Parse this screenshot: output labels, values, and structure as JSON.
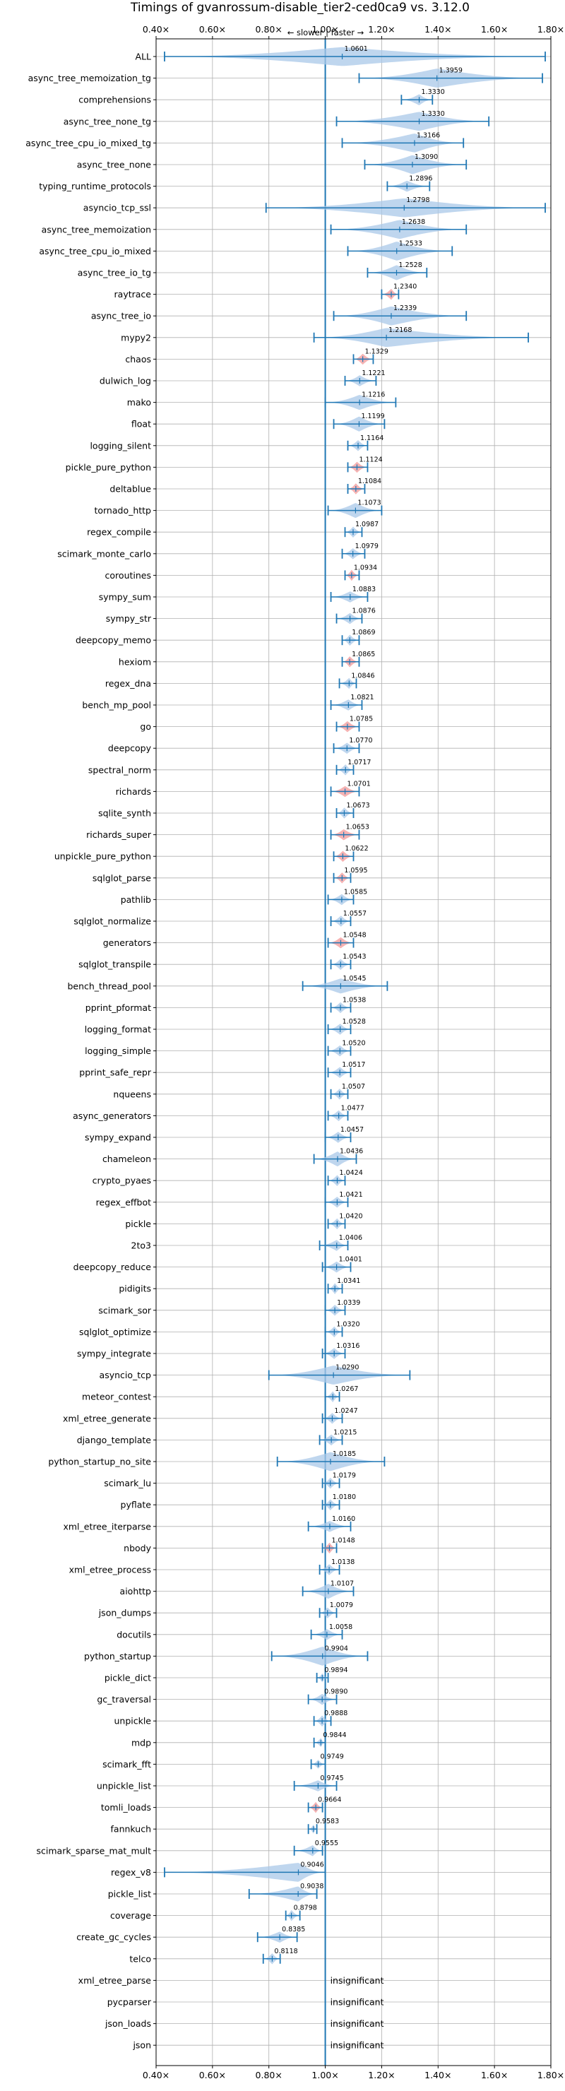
{
  "chart_data": {
    "type": "violin",
    "title": "Timings of gvanrossum-disable_tier2-ced0ca9 vs. 3.12.0",
    "direction_label": "← slower | faster →",
    "xlim": [
      0.4,
      1.8
    ],
    "xticks": [
      0.4,
      0.6,
      0.8,
      1.0,
      1.2,
      1.4,
      1.6,
      1.8
    ],
    "xtick_labels": [
      "0.40×",
      "0.60×",
      "0.80×",
      "1.00×",
      "1.20×",
      "1.40×",
      "1.60×",
      "1.80×"
    ],
    "grid": true,
    "reference_line": 1.0,
    "colors": {
      "violin": "#a9c8e8",
      "line": "#1f77b4",
      "highlight": "#f4a6a6",
      "grid": "#b0b0b0"
    },
    "insignificant_label": "insignificant",
    "benchmarks": [
      {
        "name": "ALL",
        "value": 1.0601,
        "label": "1.0601",
        "min": 0.43,
        "max": 1.78,
        "width": 0.95,
        "hl": false
      },
      {
        "name": "async_tree_memoization_tg",
        "value": 1.3959,
        "label": "1.3959",
        "min": 1.12,
        "max": 1.77,
        "width": 0.95,
        "hl": false
      },
      {
        "name": "comprehensions",
        "value": 1.333,
        "label": "1.3330",
        "min": 1.27,
        "max": 1.38,
        "width": 0.55,
        "hl": false
      },
      {
        "name": "async_tree_none_tg",
        "value": 1.333,
        "label": "1.3330",
        "min": 1.04,
        "max": 1.58,
        "width": 0.95,
        "hl": false
      },
      {
        "name": "async_tree_cpu_io_mixed_tg",
        "value": 1.3166,
        "label": "1.3166",
        "min": 1.06,
        "max": 1.49,
        "width": 0.95,
        "hl": false
      },
      {
        "name": "async_tree_none",
        "value": 1.309,
        "label": "1.3090",
        "min": 1.14,
        "max": 1.5,
        "width": 0.95,
        "hl": false
      },
      {
        "name": "typing_runtime_protocols",
        "value": 1.2896,
        "label": "1.2896",
        "min": 1.22,
        "max": 1.37,
        "width": 0.55,
        "hl": false
      },
      {
        "name": "asyncio_tcp_ssl",
        "value": 1.2798,
        "label": "1.2798",
        "min": 0.79,
        "max": 1.78,
        "width": 0.95,
        "hl": false
      },
      {
        "name": "async_tree_memoization",
        "value": 1.2638,
        "label": "1.2638",
        "min": 1.02,
        "max": 1.5,
        "width": 0.95,
        "hl": false
      },
      {
        "name": "async_tree_cpu_io_mixed",
        "value": 1.2533,
        "label": "1.2533",
        "min": 1.08,
        "max": 1.45,
        "width": 0.95,
        "hl": false
      },
      {
        "name": "async_tree_io_tg",
        "value": 1.2528,
        "label": "1.2528",
        "min": 1.15,
        "max": 1.36,
        "width": 0.75,
        "hl": false
      },
      {
        "name": "raytrace",
        "value": 1.234,
        "label": "1.2340",
        "min": 1.2,
        "max": 1.26,
        "width": 0.55,
        "hl": true
      },
      {
        "name": "async_tree_io",
        "value": 1.2339,
        "label": "1.2339",
        "min": 1.03,
        "max": 1.5,
        "width": 0.95,
        "hl": false
      },
      {
        "name": "mypy2",
        "value": 1.2168,
        "label": "1.2168",
        "min": 0.96,
        "max": 1.72,
        "width": 0.95,
        "hl": false
      },
      {
        "name": "chaos",
        "value": 1.1329,
        "label": "1.1329",
        "min": 1.1,
        "max": 1.17,
        "width": 0.55,
        "hl": true
      },
      {
        "name": "dulwich_log",
        "value": 1.1221,
        "label": "1.1221",
        "min": 1.07,
        "max": 1.18,
        "width": 0.55,
        "hl": false
      },
      {
        "name": "mako",
        "value": 1.1216,
        "label": "1.1216",
        "min": 1.0,
        "max": 1.25,
        "width": 0.75,
        "hl": false
      },
      {
        "name": "float",
        "value": 1.1199,
        "label": "1.1199",
        "min": 1.03,
        "max": 1.21,
        "width": 0.75,
        "hl": false
      },
      {
        "name": "logging_silent",
        "value": 1.1164,
        "label": "1.1164",
        "min": 1.08,
        "max": 1.15,
        "width": 0.55,
        "hl": false
      },
      {
        "name": "pickle_pure_python",
        "value": 1.1124,
        "label": "1.1124",
        "min": 1.08,
        "max": 1.15,
        "width": 0.55,
        "hl": true
      },
      {
        "name": "deltablue",
        "value": 1.1084,
        "label": "1.1084",
        "min": 1.08,
        "max": 1.14,
        "width": 0.55,
        "hl": true
      },
      {
        "name": "tornado_http",
        "value": 1.1073,
        "label": "1.1073",
        "min": 1.01,
        "max": 1.2,
        "width": 0.75,
        "hl": false
      },
      {
        "name": "regex_compile",
        "value": 1.0987,
        "label": "1.0987",
        "min": 1.07,
        "max": 1.13,
        "width": 0.55,
        "hl": false
      },
      {
        "name": "scimark_monte_carlo",
        "value": 1.0979,
        "label": "1.0979",
        "min": 1.06,
        "max": 1.14,
        "width": 0.55,
        "hl": false
      },
      {
        "name": "coroutines",
        "value": 1.0934,
        "label": "1.0934",
        "min": 1.07,
        "max": 1.12,
        "width": 0.55,
        "hl": true
      },
      {
        "name": "sympy_sum",
        "value": 1.0883,
        "label": "1.0883",
        "min": 1.02,
        "max": 1.15,
        "width": 0.55,
        "hl": false
      },
      {
        "name": "sympy_str",
        "value": 1.0876,
        "label": "1.0876",
        "min": 1.04,
        "max": 1.13,
        "width": 0.55,
        "hl": false
      },
      {
        "name": "deepcopy_memo",
        "value": 1.0869,
        "label": "1.0869",
        "min": 1.06,
        "max": 1.12,
        "width": 0.55,
        "hl": false
      },
      {
        "name": "hexiom",
        "value": 1.0865,
        "label": "1.0865",
        "min": 1.06,
        "max": 1.12,
        "width": 0.55,
        "hl": true
      },
      {
        "name": "regex_dna",
        "value": 1.0846,
        "label": "1.0846",
        "min": 1.05,
        "max": 1.11,
        "width": 0.55,
        "hl": false
      },
      {
        "name": "bench_mp_pool",
        "value": 1.0821,
        "label": "1.0821",
        "min": 1.02,
        "max": 1.13,
        "width": 0.55,
        "hl": false
      },
      {
        "name": "go",
        "value": 1.0785,
        "label": "1.0785",
        "min": 1.04,
        "max": 1.12,
        "width": 0.55,
        "hl": true
      },
      {
        "name": "deepcopy",
        "value": 1.077,
        "label": "1.0770",
        "min": 1.03,
        "max": 1.12,
        "width": 0.55,
        "hl": false
      },
      {
        "name": "spectral_norm",
        "value": 1.0717,
        "label": "1.0717",
        "min": 1.04,
        "max": 1.1,
        "width": 0.55,
        "hl": false
      },
      {
        "name": "richards",
        "value": 1.0701,
        "label": "1.0701",
        "min": 1.02,
        "max": 1.12,
        "width": 0.55,
        "hl": true
      },
      {
        "name": "sqlite_synth",
        "value": 1.0673,
        "label": "1.0673",
        "min": 1.04,
        "max": 1.1,
        "width": 0.55,
        "hl": false
      },
      {
        "name": "richards_super",
        "value": 1.0653,
        "label": "1.0653",
        "min": 1.02,
        "max": 1.12,
        "width": 0.55,
        "hl": true
      },
      {
        "name": "unpickle_pure_python",
        "value": 1.0622,
        "label": "1.0622",
        "min": 1.03,
        "max": 1.1,
        "width": 0.55,
        "hl": true
      },
      {
        "name": "sqlglot_parse",
        "value": 1.0595,
        "label": "1.0595",
        "min": 1.03,
        "max": 1.09,
        "width": 0.55,
        "hl": true
      },
      {
        "name": "pathlib",
        "value": 1.0585,
        "label": "1.0585",
        "min": 1.01,
        "max": 1.1,
        "width": 0.55,
        "hl": false
      },
      {
        "name": "sqlglot_normalize",
        "value": 1.0557,
        "label": "1.0557",
        "min": 1.02,
        "max": 1.09,
        "width": 0.55,
        "hl": false
      },
      {
        "name": "generators",
        "value": 1.0548,
        "label": "1.0548",
        "min": 1.01,
        "max": 1.1,
        "width": 0.55,
        "hl": true
      },
      {
        "name": "sqlglot_transpile",
        "value": 1.0543,
        "label": "1.0543",
        "min": 1.02,
        "max": 1.09,
        "width": 0.55,
        "hl": false
      },
      {
        "name": "bench_thread_pool",
        "value": 1.0545,
        "label": "1.0545",
        "min": 0.92,
        "max": 1.22,
        "width": 0.75,
        "hl": false
      },
      {
        "name": "pprint_pformat",
        "value": 1.0538,
        "label": "1.0538",
        "min": 1.02,
        "max": 1.09,
        "width": 0.55,
        "hl": false
      },
      {
        "name": "logging_format",
        "value": 1.0528,
        "label": "1.0528",
        "min": 1.01,
        "max": 1.09,
        "width": 0.55,
        "hl": false
      },
      {
        "name": "logging_simple",
        "value": 1.052,
        "label": "1.0520",
        "min": 1.01,
        "max": 1.09,
        "width": 0.55,
        "hl": false
      },
      {
        "name": "pprint_safe_repr",
        "value": 1.0517,
        "label": "1.0517",
        "min": 1.01,
        "max": 1.09,
        "width": 0.55,
        "hl": false
      },
      {
        "name": "nqueens",
        "value": 1.0507,
        "label": "1.0507",
        "min": 1.02,
        "max": 1.08,
        "width": 0.55,
        "hl": false
      },
      {
        "name": "async_generators",
        "value": 1.0477,
        "label": "1.0477",
        "min": 1.01,
        "max": 1.08,
        "width": 0.55,
        "hl": false
      },
      {
        "name": "sympy_expand",
        "value": 1.0457,
        "label": "1.0457",
        "min": 1.0,
        "max": 1.09,
        "width": 0.55,
        "hl": false
      },
      {
        "name": "chameleon",
        "value": 1.0436,
        "label": "1.0436",
        "min": 0.96,
        "max": 1.11,
        "width": 0.75,
        "hl": false
      },
      {
        "name": "crypto_pyaes",
        "value": 1.0424,
        "label": "1.0424",
        "min": 1.01,
        "max": 1.07,
        "width": 0.55,
        "hl": false
      },
      {
        "name": "regex_effbot",
        "value": 1.0421,
        "label": "1.0421",
        "min": 1.0,
        "max": 1.08,
        "width": 0.55,
        "hl": false
      },
      {
        "name": "pickle",
        "value": 1.042,
        "label": "1.0420",
        "min": 1.01,
        "max": 1.07,
        "width": 0.55,
        "hl": false
      },
      {
        "name": "2to3",
        "value": 1.0406,
        "label": "1.0406",
        "min": 0.98,
        "max": 1.08,
        "width": 0.55,
        "hl": false
      },
      {
        "name": "deepcopy_reduce",
        "value": 1.0401,
        "label": "1.0401",
        "min": 0.99,
        "max": 1.09,
        "width": 0.55,
        "hl": false
      },
      {
        "name": "pidigits",
        "value": 1.0341,
        "label": "1.0341",
        "min": 1.01,
        "max": 1.06,
        "width": 0.55,
        "hl": false
      },
      {
        "name": "scimark_sor",
        "value": 1.0339,
        "label": "1.0339",
        "min": 1.0,
        "max": 1.07,
        "width": 0.55,
        "hl": false
      },
      {
        "name": "sqlglot_optimize",
        "value": 1.032,
        "label": "1.0320",
        "min": 1.0,
        "max": 1.06,
        "width": 0.55,
        "hl": false
      },
      {
        "name": "sympy_integrate",
        "value": 1.0316,
        "label": "1.0316",
        "min": 0.99,
        "max": 1.07,
        "width": 0.55,
        "hl": false
      },
      {
        "name": "asyncio_tcp",
        "value": 1.029,
        "label": "1.0290",
        "min": 0.8,
        "max": 1.3,
        "width": 0.95,
        "hl": false
      },
      {
        "name": "meteor_contest",
        "value": 1.0267,
        "label": "1.0267",
        "min": 1.0,
        "max": 1.05,
        "width": 0.55,
        "hl": false
      },
      {
        "name": "xml_etree_generate",
        "value": 1.0247,
        "label": "1.0247",
        "min": 0.99,
        "max": 1.06,
        "width": 0.55,
        "hl": false
      },
      {
        "name": "django_template",
        "value": 1.0215,
        "label": "1.0215",
        "min": 0.98,
        "max": 1.06,
        "width": 0.55,
        "hl": false
      },
      {
        "name": "python_startup_no_site",
        "value": 1.0185,
        "label": "1.0185",
        "min": 0.83,
        "max": 1.21,
        "width": 0.95,
        "hl": false
      },
      {
        "name": "scimark_lu",
        "value": 1.0179,
        "label": "1.0179",
        "min": 0.99,
        "max": 1.05,
        "width": 0.55,
        "hl": false
      },
      {
        "name": "pyflate",
        "value": 1.018,
        "label": "1.0180",
        "min": 0.99,
        "max": 1.05,
        "width": 0.55,
        "hl": false
      },
      {
        "name": "xml_etree_iterparse",
        "value": 1.016,
        "label": "1.0160",
        "min": 0.94,
        "max": 1.09,
        "width": 0.55,
        "hl": false
      },
      {
        "name": "nbody",
        "value": 1.0148,
        "label": "1.0148",
        "min": 0.99,
        "max": 1.04,
        "width": 0.55,
        "hl": true
      },
      {
        "name": "xml_etree_process",
        "value": 1.0138,
        "label": "1.0138",
        "min": 0.98,
        "max": 1.05,
        "width": 0.55,
        "hl": false
      },
      {
        "name": "aiohttp",
        "value": 1.0107,
        "label": "1.0107",
        "min": 0.92,
        "max": 1.1,
        "width": 0.75,
        "hl": false
      },
      {
        "name": "json_dumps",
        "value": 1.0079,
        "label": "1.0079",
        "min": 0.98,
        "max": 1.04,
        "width": 0.55,
        "hl": false
      },
      {
        "name": "docutils",
        "value": 1.0058,
        "label": "1.0058",
        "min": 0.95,
        "max": 1.06,
        "width": 0.55,
        "hl": false
      },
      {
        "name": "python_startup",
        "value": 0.9904,
        "label": "0.9904",
        "min": 0.81,
        "max": 1.15,
        "width": 0.95,
        "hl": false
      },
      {
        "name": "pickle_dict",
        "value": 0.9894,
        "label": "0.9894",
        "min": 0.97,
        "max": 1.01,
        "width": 0.45,
        "hl": false
      },
      {
        "name": "gc_traversal",
        "value": 0.989,
        "label": "0.9890",
        "min": 0.94,
        "max": 1.04,
        "width": 0.55,
        "hl": false
      },
      {
        "name": "unpickle",
        "value": 0.9888,
        "label": "0.9888",
        "min": 0.96,
        "max": 1.02,
        "width": 0.55,
        "hl": false
      },
      {
        "name": "mdp",
        "value": 0.9844,
        "label": "0.9844",
        "min": 0.96,
        "max": 1.0,
        "width": 0.45,
        "hl": false
      },
      {
        "name": "scimark_fft",
        "value": 0.9749,
        "label": "0.9749",
        "min": 0.95,
        "max": 1.0,
        "width": 0.45,
        "hl": false
      },
      {
        "name": "unpickle_list",
        "value": 0.9745,
        "label": "0.9745",
        "min": 0.89,
        "max": 1.04,
        "width": 0.55,
        "hl": false
      },
      {
        "name": "tomli_loads",
        "value": 0.9664,
        "label": "0.9664",
        "min": 0.94,
        "max": 0.99,
        "width": 0.55,
        "hl": true
      },
      {
        "name": "fannkuch",
        "value": 0.9583,
        "label": "0.9583",
        "min": 0.94,
        "max": 0.97,
        "width": 0.45,
        "hl": false
      },
      {
        "name": "scimark_sparse_mat_mult",
        "value": 0.9555,
        "label": "0.9555",
        "min": 0.89,
        "max": 0.99,
        "width": 0.55,
        "hl": false
      },
      {
        "name": "regex_v8",
        "value": 0.9046,
        "label": "0.9046",
        "min": 0.43,
        "max": 1.0,
        "width": 0.95,
        "hl": false
      },
      {
        "name": "pickle_list",
        "value": 0.9038,
        "label": "0.9038",
        "min": 0.73,
        "max": 0.97,
        "width": 0.75,
        "hl": false
      },
      {
        "name": "coverage",
        "value": 0.8798,
        "label": "0.8798",
        "min": 0.86,
        "max": 0.91,
        "width": 0.55,
        "hl": false
      },
      {
        "name": "create_gc_cycles",
        "value": 0.8385,
        "label": "0.8385",
        "min": 0.76,
        "max": 0.9,
        "width": 0.55,
        "hl": false
      },
      {
        "name": "telco",
        "value": 0.8118,
        "label": "0.8118",
        "min": 0.78,
        "max": 0.84,
        "width": 0.55,
        "hl": false
      },
      {
        "name": "xml_etree_parse",
        "value": null,
        "label": "",
        "insignificant": true
      },
      {
        "name": "pycparser",
        "value": null,
        "label": "",
        "insignificant": true
      },
      {
        "name": "json_loads",
        "value": null,
        "label": "",
        "insignificant": true
      },
      {
        "name": "json",
        "value": null,
        "label": "",
        "insignificant": true
      }
    ]
  }
}
